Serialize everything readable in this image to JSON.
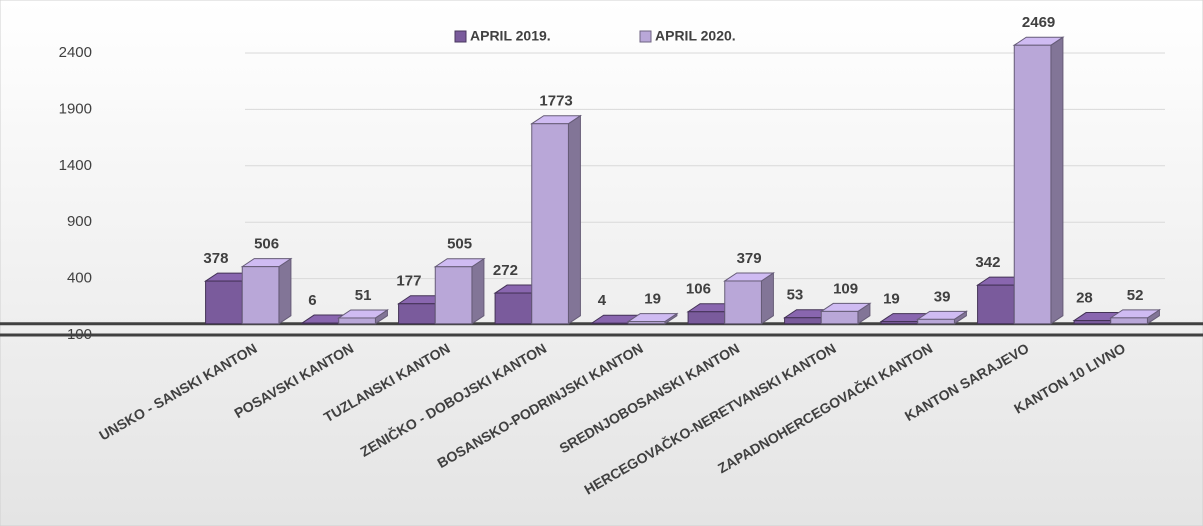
{
  "chart_data": {
    "type": "bar3d",
    "categories": [
      "UNSKO - SANSKI KANTON",
      "POSAVSKI KANTON",
      "TUZLANSKI KANTON",
      "ZENIČKO - DOBOJSKI KANTON",
      "BOSANSKO-PODRINJSKI KANTON",
      "SREDNJOBOSANSKI KANTON",
      "HERCEGOVAČKO-NERETVANSKI KANTON",
      "ZAPADNOHERCEGOVAČKI KANTON",
      "KANTON SARAJEVO",
      "KANTON 10 LIVNO"
    ],
    "series": [
      {
        "name": "APRIL 2019.",
        "color": "#7a5b9c",
        "values": [
          378,
          6,
          177,
          272,
          4,
          106,
          53,
          19,
          342,
          28
        ]
      },
      {
        "name": "APRIL 2020.",
        "color": "#b9a7d8",
        "values": [
          506,
          51,
          505,
          1773,
          19,
          379,
          109,
          39,
          2469,
          52
        ]
      }
    ],
    "ylim": [
      -100,
      2400
    ],
    "yticks": [
      -100,
      400,
      900,
      1400,
      1900,
      2400
    ],
    "grid": true
  }
}
